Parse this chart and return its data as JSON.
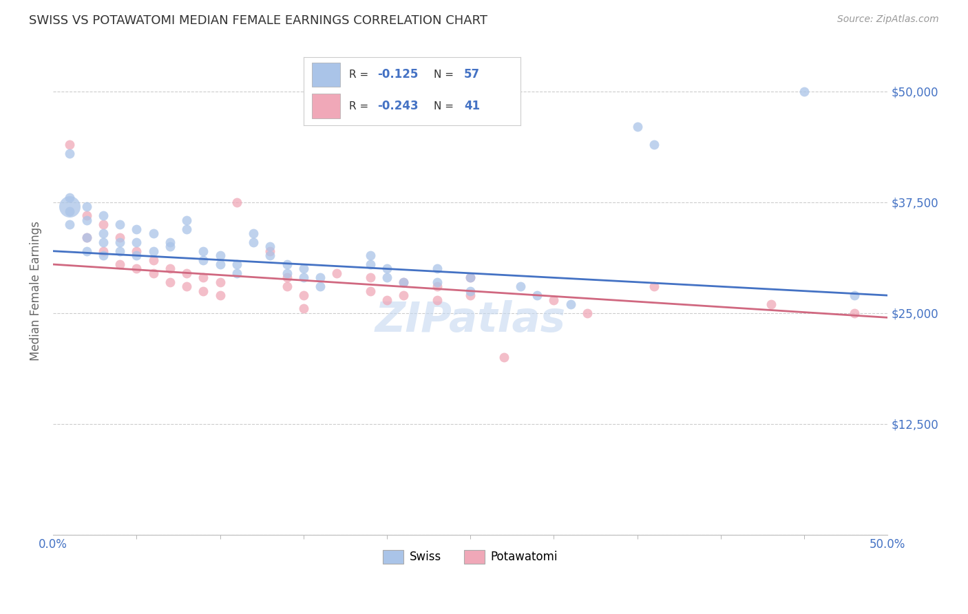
{
  "title": "SWISS VS POTAWATOMI MEDIAN FEMALE EARNINGS CORRELATION CHART",
  "source": "Source: ZipAtlas.com",
  "ylabel": "Median Female Earnings",
  "y_ticks": [
    0,
    12500,
    25000,
    37500,
    50000
  ],
  "y_tick_labels_right": [
    "",
    "$12,500",
    "$25,000",
    "$37,500",
    "$50,000"
  ],
  "x_ticks": [
    0.0,
    0.5
  ],
  "x_tick_labels": [
    "0.0%",
    "50.0%"
  ],
  "x_min": 0.0,
  "x_max": 0.5,
  "y_min": 0,
  "y_max": 55000,
  "swiss_r": "-0.125",
  "swiss_n": "57",
  "pota_r": "-0.243",
  "pota_n": "41",
  "swiss_label": "Swiss",
  "pota_label": "Potawatomi",
  "swiss_fill": "#aac4e8",
  "pota_fill": "#f0a8b8",
  "swiss_line": "#4472c4",
  "pota_line": "#d06880",
  "title_color": "#333333",
  "source_color": "#999999",
  "axis_color": "#666666",
  "tick_color_x": "#4472c4",
  "tick_color_y_right": "#4472c4",
  "grid_color": "#cccccc",
  "watermark_text": "ZIPatlas",
  "watermark_color": "#c5d8f0",
  "swiss_line_y0": 32000,
  "swiss_line_y1": 27000,
  "pota_line_y0": 30500,
  "pota_line_y1": 24500,
  "swiss_points": [
    [
      0.01,
      43000
    ],
    [
      0.01,
      38000
    ],
    [
      0.01,
      36500
    ],
    [
      0.01,
      35000
    ],
    [
      0.02,
      37000
    ],
    [
      0.02,
      35500
    ],
    [
      0.02,
      33500
    ],
    [
      0.02,
      32000
    ],
    [
      0.03,
      36000
    ],
    [
      0.03,
      34000
    ],
    [
      0.03,
      33000
    ],
    [
      0.03,
      31500
    ],
    [
      0.04,
      35000
    ],
    [
      0.04,
      33000
    ],
    [
      0.04,
      32000
    ],
    [
      0.05,
      34500
    ],
    [
      0.05,
      33000
    ],
    [
      0.05,
      31500
    ],
    [
      0.06,
      34000
    ],
    [
      0.06,
      32000
    ],
    [
      0.07,
      33000
    ],
    [
      0.07,
      32500
    ],
    [
      0.08,
      35500
    ],
    [
      0.08,
      34500
    ],
    [
      0.09,
      32000
    ],
    [
      0.09,
      31000
    ],
    [
      0.1,
      31500
    ],
    [
      0.1,
      30500
    ],
    [
      0.11,
      30500
    ],
    [
      0.11,
      29500
    ],
    [
      0.12,
      34000
    ],
    [
      0.12,
      33000
    ],
    [
      0.13,
      32500
    ],
    [
      0.13,
      31500
    ],
    [
      0.14,
      30500
    ],
    [
      0.14,
      29500
    ],
    [
      0.15,
      30000
    ],
    [
      0.15,
      29000
    ],
    [
      0.16,
      29000
    ],
    [
      0.16,
      28000
    ],
    [
      0.19,
      31500
    ],
    [
      0.19,
      30500
    ],
    [
      0.2,
      30000
    ],
    [
      0.2,
      29000
    ],
    [
      0.21,
      28500
    ],
    [
      0.23,
      30000
    ],
    [
      0.23,
      28500
    ],
    [
      0.25,
      29000
    ],
    [
      0.25,
      27500
    ],
    [
      0.28,
      28000
    ],
    [
      0.29,
      27000
    ],
    [
      0.31,
      26000
    ],
    [
      0.35,
      46000
    ],
    [
      0.36,
      44000
    ],
    [
      0.45,
      50000
    ],
    [
      0.48,
      27000
    ]
  ],
  "swiss_large_point": [
    0.01,
    37000
  ],
  "swiss_large_size": 500,
  "pota_points": [
    [
      0.01,
      44000
    ],
    [
      0.02,
      36000
    ],
    [
      0.02,
      33500
    ],
    [
      0.03,
      35000
    ],
    [
      0.03,
      32000
    ],
    [
      0.04,
      33500
    ],
    [
      0.04,
      30500
    ],
    [
      0.05,
      32000
    ],
    [
      0.05,
      30000
    ],
    [
      0.06,
      31000
    ],
    [
      0.06,
      29500
    ],
    [
      0.07,
      30000
    ],
    [
      0.07,
      28500
    ],
    [
      0.08,
      29500
    ],
    [
      0.08,
      28000
    ],
    [
      0.09,
      29000
    ],
    [
      0.09,
      27500
    ],
    [
      0.1,
      28500
    ],
    [
      0.1,
      27000
    ],
    [
      0.11,
      37500
    ],
    [
      0.13,
      32000
    ],
    [
      0.14,
      29000
    ],
    [
      0.14,
      28000
    ],
    [
      0.15,
      27000
    ],
    [
      0.15,
      25500
    ],
    [
      0.17,
      29500
    ],
    [
      0.19,
      29000
    ],
    [
      0.19,
      27500
    ],
    [
      0.2,
      26500
    ],
    [
      0.21,
      28500
    ],
    [
      0.21,
      27000
    ],
    [
      0.23,
      28000
    ],
    [
      0.23,
      26500
    ],
    [
      0.25,
      29000
    ],
    [
      0.25,
      27000
    ],
    [
      0.27,
      20000
    ],
    [
      0.3,
      26500
    ],
    [
      0.32,
      25000
    ],
    [
      0.36,
      28000
    ],
    [
      0.43,
      26000
    ],
    [
      0.48,
      25000
    ]
  ]
}
